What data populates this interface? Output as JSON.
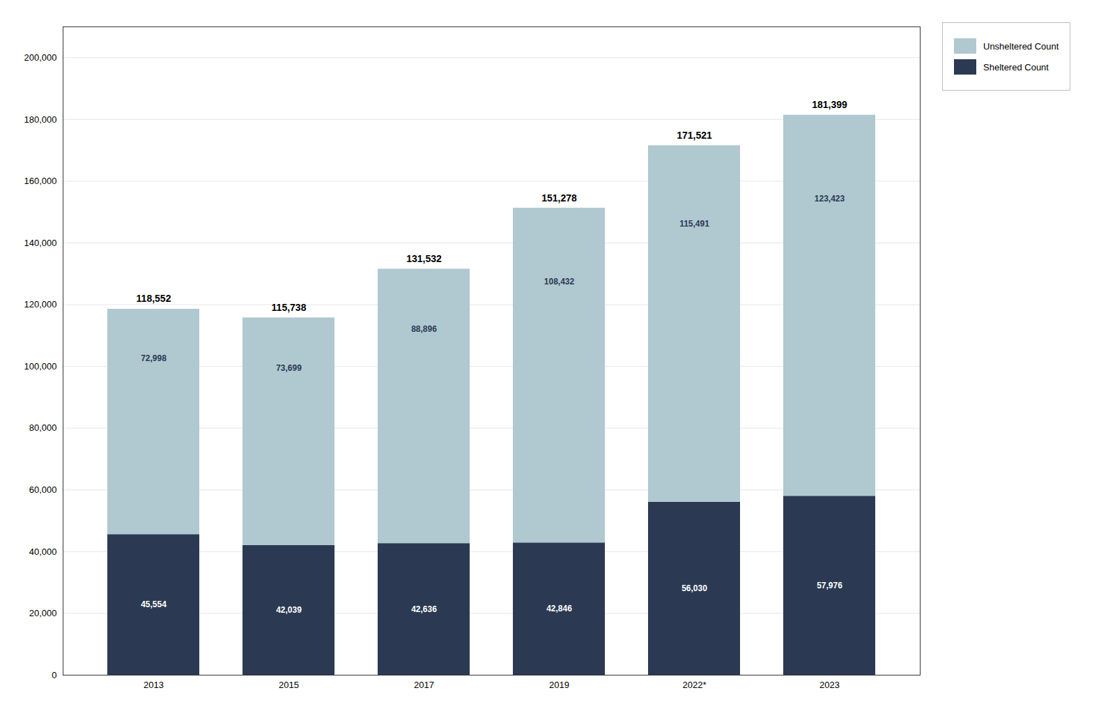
{
  "chart_data": {
    "type": "bar",
    "stacked": true,
    "categories": [
      "2013",
      "2015",
      "2017",
      "2019",
      "2022*",
      "2023"
    ],
    "series": [
      {
        "name": "Sheltered Count",
        "color": "#2b3a52",
        "values": [
          45554,
          42039,
          42636,
          42846,
          56030,
          57976
        ],
        "value_labels": [
          "45,554",
          "42,039",
          "42,636",
          "42,846",
          "56,030",
          "57,976"
        ]
      },
      {
        "name": "Unsheltered Count",
        "color": "#b0c8d0",
        "values": [
          72998,
          73699,
          88896,
          108432,
          115491,
          123423
        ],
        "value_labels": [
          "72,998",
          "73,699",
          "88,896",
          "108,432",
          "115,491",
          "123,423"
        ]
      }
    ],
    "totals": [
      118552,
      115738,
      131532,
      151278,
      171521,
      181399
    ],
    "total_labels": [
      "118,552",
      "115,738",
      "131,532",
      "151,278",
      "171,521",
      "181,399"
    ],
    "data_labels": true,
    "ylim": [
      0,
      210000
    ],
    "yticks": [
      0,
      {
        "value": 20000,
        "label": "20,000"
      },
      {
        "value": 40000,
        "label": "40,000"
      },
      {
        "value": 60000,
        "label": "60,000"
      },
      {
        "value": 80000,
        "label": "80,000"
      },
      {
        "value": 100000,
        "label": "100,000"
      },
      {
        "value": 120000,
        "label": "120,000"
      },
      {
        "value": 140000,
        "label": "140,000"
      },
      {
        "value": 160000,
        "label": "160,000"
      },
      {
        "value": 180000,
        "label": "180,000"
      },
      {
        "value": 200000,
        "label": "200,000"
      }
    ],
    "grid": true,
    "legend": "top right"
  }
}
